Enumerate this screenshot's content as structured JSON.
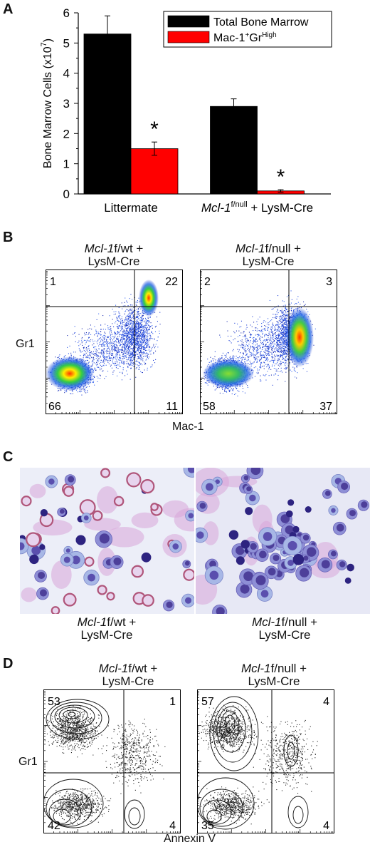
{
  "panels": {
    "a": "A",
    "b": "B",
    "c": "C",
    "d": "D"
  },
  "chart_data": {
    "type": "bar",
    "categories": [
      "Littermate",
      "Mcl-1f/null + LysM-Cre"
    ],
    "category_parts": [
      {
        "italic": "",
        "sup": "",
        "rest": "Littermate"
      },
      {
        "italic": "Mcl-1",
        "sup": "f/null",
        "rest": " + LysM-Cre"
      }
    ],
    "series": [
      {
        "name": "Total Bone Marrow",
        "color": "#000000",
        "values": [
          5.3,
          2.9
        ],
        "errors": [
          0.6,
          0.25
        ]
      },
      {
        "name": "Mac-1+GrHigh",
        "color": "#ff0000",
        "values": [
          1.5,
          0.1
        ],
        "errors": [
          0.22,
          0.04
        ]
      }
    ],
    "legend": [
      {
        "base": "Total Bone Marrow",
        "sup1": "",
        "mid": "",
        "sup2": ""
      },
      {
        "base": "Mac-1",
        "sup1": "+",
        "mid": "Gr",
        "sup2": "High"
      }
    ],
    "ylabel": "Bone Marrow Cells (x10",
    "ylabel_sup": "7",
    "ylabel_end": ")",
    "ylim": [
      0,
      6
    ],
    "yticks": [
      "0",
      "1",
      "2",
      "3",
      "4",
      "5",
      "6"
    ],
    "annotations": [
      "*",
      "*"
    ],
    "legend_position": "top-right"
  },
  "flow_b": {
    "xlabel": "Mac-1",
    "ylabel": "Gr1",
    "plots": [
      {
        "title_italic": "Mcl-1",
        "title_rest": "f/wt +",
        "title_line2": "LysM-Cre",
        "q_ul": "1",
        "q_ur": "22",
        "q_ll": "66",
        "q_lr": "11"
      },
      {
        "title_italic": "Mcl-1",
        "title_rest": "f/null +",
        "title_line2": "LysM-Cre",
        "q_ul": "2",
        "q_ur": "3",
        "q_ll": "58",
        "q_lr": "37"
      }
    ]
  },
  "micro_c": {
    "captions": [
      {
        "italic": "Mcl-1",
        "rest": "f/wt +",
        "line2": "LysM-Cre"
      },
      {
        "italic": "Mcl-1",
        "rest": "f/null +",
        "line2": "LysM-Cre"
      }
    ]
  },
  "flow_d": {
    "xlabel": "Annexin V",
    "ylabel": "Gr1",
    "plots": [
      {
        "title_italic": "Mcl-1",
        "title_rest": "f/wt +",
        "title_line2": "LysM-Cre",
        "q_ul": "53",
        "q_ur": "1",
        "q_ll": "42",
        "q_lr": "4"
      },
      {
        "title_italic": "Mcl-1",
        "title_rest": "f/null +",
        "title_line2": "LysM-Cre",
        "q_ul": "57",
        "q_ur": "4",
        "q_ll": "35",
        "q_lr": "4"
      }
    ]
  }
}
